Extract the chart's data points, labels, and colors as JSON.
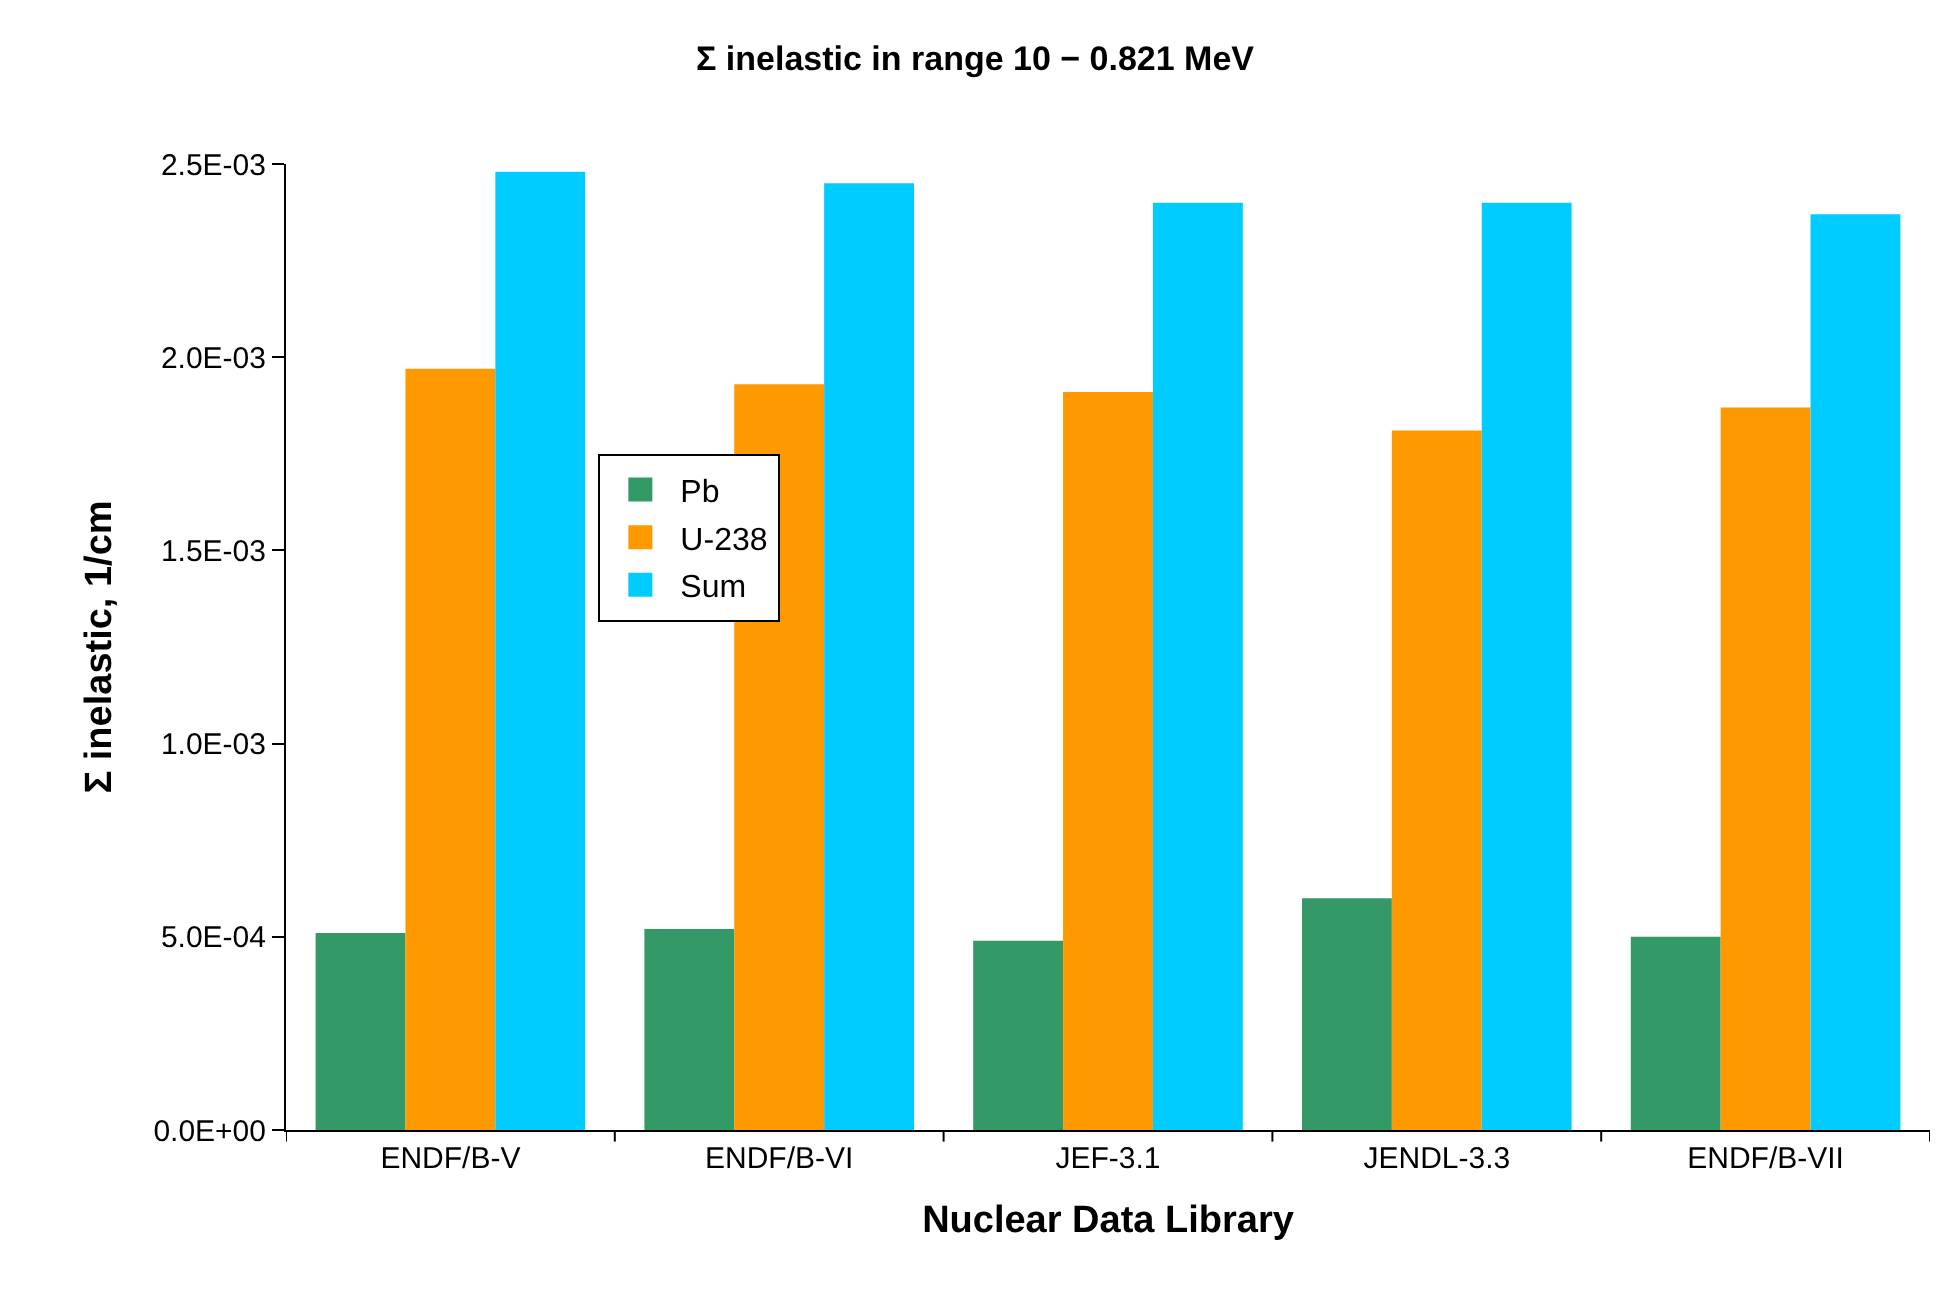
{
  "chart_data": {
    "type": "bar",
    "title": "Σ inelastic in range 10 − 0.821 MeV",
    "xlabel": "Nuclear Data Library",
    "ylabel": "Σ inelastic, 1/cm",
    "categories": [
      "ENDF/B-V",
      "ENDF/B-VI",
      "JEF-3.1",
      "JENDL-3.3",
      "ENDF/B-VII"
    ],
    "series": [
      {
        "name": "Pb",
        "color": "#339966",
        "values": [
          0.00051,
          0.00052,
          0.00049,
          0.0006,
          0.0005
        ]
      },
      {
        "name": "U-238",
        "color": "#ff9900",
        "values": [
          0.00197,
          0.00193,
          0.00191,
          0.00181,
          0.00187
        ]
      },
      {
        "name": "Sum",
        "color": "#00ccff",
        "values": [
          0.00248,
          0.00245,
          0.0024,
          0.0024,
          0.00237
        ]
      }
    ],
    "ylim": [
      0,
      0.0025
    ],
    "yticks": [
      {
        "value": 0,
        "label": "0.0E+00"
      },
      {
        "value": 0.0005,
        "label": "5.0E-04"
      },
      {
        "value": 0.001,
        "label": "1.0E-03"
      },
      {
        "value": 0.0015,
        "label": "1.5E-03"
      },
      {
        "value": 0.002,
        "label": "2.0E-03"
      },
      {
        "value": 0.0025,
        "label": "2.5E-03"
      }
    ],
    "legend": "left"
  }
}
